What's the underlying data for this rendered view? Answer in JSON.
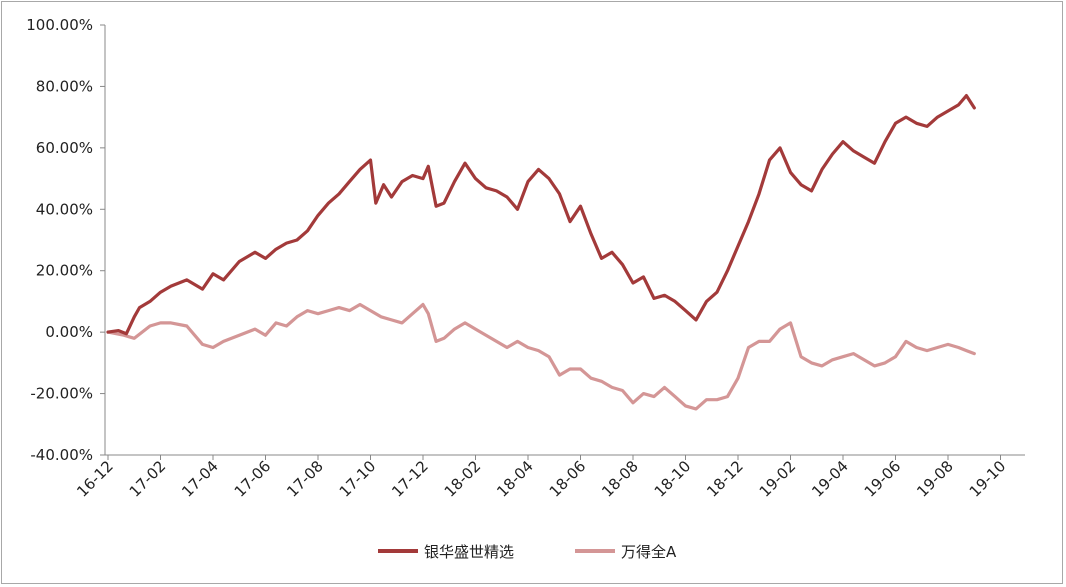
{
  "chart_data": {
    "type": "line",
    "y_ticks": [
      "100.00%",
      "80.00%",
      "60.00%",
      "40.00%",
      "20.00%",
      "0.00%",
      "-20.00%",
      "-40.00%"
    ],
    "ylim": [
      -40,
      100
    ],
    "x_ticks": [
      "16-12",
      "17-02",
      "17-04",
      "17-06",
      "17-08",
      "17-10",
      "17-12",
      "18-02",
      "18-04",
      "18-06",
      "18-08",
      "18-10",
      "18-12",
      "19-02",
      "19-04",
      "19-06",
      "19-08",
      "19-10"
    ],
    "series": [
      {
        "name": "银华盛世精选",
        "color": "#a33a3a",
        "points": [
          [
            0,
            0
          ],
          [
            0.2,
            0.5
          ],
          [
            0.35,
            -0.5
          ],
          [
            0.5,
            5
          ],
          [
            0.6,
            8
          ],
          [
            0.8,
            10
          ],
          [
            1.0,
            13
          ],
          [
            1.2,
            15
          ],
          [
            1.5,
            17
          ],
          [
            1.8,
            14
          ],
          [
            2.0,
            19
          ],
          [
            2.2,
            17
          ],
          [
            2.5,
            23
          ],
          [
            2.8,
            26
          ],
          [
            3.0,
            24
          ],
          [
            3.2,
            27
          ],
          [
            3.4,
            29
          ],
          [
            3.6,
            30
          ],
          [
            3.8,
            33
          ],
          [
            4.0,
            38
          ],
          [
            4.2,
            42
          ],
          [
            4.4,
            45
          ],
          [
            4.6,
            49
          ],
          [
            4.8,
            53
          ],
          [
            5.0,
            56
          ],
          [
            5.1,
            42
          ],
          [
            5.25,
            48
          ],
          [
            5.4,
            44
          ],
          [
            5.6,
            49
          ],
          [
            5.8,
            51
          ],
          [
            6.0,
            50
          ],
          [
            6.1,
            54
          ],
          [
            6.25,
            41
          ],
          [
            6.4,
            42
          ],
          [
            6.6,
            49
          ],
          [
            6.8,
            55
          ],
          [
            7.0,
            50
          ],
          [
            7.2,
            47
          ],
          [
            7.4,
            46
          ],
          [
            7.6,
            44
          ],
          [
            7.8,
            40
          ],
          [
            8.0,
            49
          ],
          [
            8.2,
            53
          ],
          [
            8.4,
            50
          ],
          [
            8.6,
            45
          ],
          [
            8.8,
            36
          ],
          [
            9.0,
            41
          ],
          [
            9.2,
            32
          ],
          [
            9.4,
            24
          ],
          [
            9.6,
            26
          ],
          [
            9.8,
            22
          ],
          [
            10.0,
            16
          ],
          [
            10.2,
            18
          ],
          [
            10.4,
            11
          ],
          [
            10.6,
            12
          ],
          [
            10.8,
            10
          ],
          [
            11.0,
            7
          ],
          [
            11.2,
            4
          ],
          [
            11.4,
            10
          ],
          [
            11.6,
            13
          ],
          [
            11.8,
            20
          ],
          [
            12.0,
            28
          ],
          [
            12.2,
            36
          ],
          [
            12.4,
            45
          ],
          [
            12.6,
            56
          ],
          [
            12.8,
            60
          ],
          [
            13.0,
            52
          ],
          [
            13.2,
            48
          ],
          [
            13.4,
            46
          ],
          [
            13.6,
            53
          ],
          [
            13.8,
            58
          ],
          [
            14.0,
            62
          ],
          [
            14.2,
            59
          ],
          [
            14.4,
            57
          ],
          [
            14.6,
            55
          ],
          [
            14.8,
            62
          ],
          [
            15.0,
            68
          ],
          [
            15.2,
            70
          ],
          [
            15.4,
            68
          ],
          [
            15.6,
            67
          ],
          [
            15.8,
            70
          ],
          [
            16.0,
            72
          ],
          [
            16.2,
            74
          ],
          [
            16.35,
            77
          ],
          [
            16.5,
            73
          ]
        ]
      },
      {
        "name": "万得全A",
        "color": "#d49696",
        "points": [
          [
            0,
            0
          ],
          [
            0.3,
            -1
          ],
          [
            0.5,
            -2
          ],
          [
            0.8,
            2
          ],
          [
            1.0,
            3
          ],
          [
            1.2,
            3
          ],
          [
            1.5,
            2
          ],
          [
            1.8,
            -4
          ],
          [
            2.0,
            -5
          ],
          [
            2.2,
            -3
          ],
          [
            2.5,
            -1
          ],
          [
            2.8,
            1
          ],
          [
            3.0,
            -1
          ],
          [
            3.2,
            3
          ],
          [
            3.4,
            2
          ],
          [
            3.6,
            5
          ],
          [
            3.8,
            7
          ],
          [
            4.0,
            6
          ],
          [
            4.2,
            7
          ],
          [
            4.4,
            8
          ],
          [
            4.6,
            7
          ],
          [
            4.8,
            9
          ],
          [
            5.0,
            7
          ],
          [
            5.2,
            5
          ],
          [
            5.4,
            4
          ],
          [
            5.6,
            3
          ],
          [
            5.8,
            6
          ],
          [
            6.0,
            9
          ],
          [
            6.1,
            6
          ],
          [
            6.25,
            -3
          ],
          [
            6.4,
            -2
          ],
          [
            6.6,
            1
          ],
          [
            6.8,
            3
          ],
          [
            7.0,
            1
          ],
          [
            7.2,
            -1
          ],
          [
            7.4,
            -3
          ],
          [
            7.6,
            -5
          ],
          [
            7.8,
            -3
          ],
          [
            8.0,
            -5
          ],
          [
            8.2,
            -6
          ],
          [
            8.4,
            -8
          ],
          [
            8.6,
            -14
          ],
          [
            8.8,
            -12
          ],
          [
            9.0,
            -12
          ],
          [
            9.2,
            -15
          ],
          [
            9.4,
            -16
          ],
          [
            9.6,
            -18
          ],
          [
            9.8,
            -19
          ],
          [
            10.0,
            -23
          ],
          [
            10.2,
            -20
          ],
          [
            10.4,
            -21
          ],
          [
            10.6,
            -18
          ],
          [
            10.8,
            -21
          ],
          [
            11.0,
            -24
          ],
          [
            11.2,
            -25
          ],
          [
            11.4,
            -22
          ],
          [
            11.6,
            -22
          ],
          [
            11.8,
            -21
          ],
          [
            12.0,
            -15
          ],
          [
            12.2,
            -5
          ],
          [
            12.4,
            -3
          ],
          [
            12.6,
            -3
          ],
          [
            12.8,
            1
          ],
          [
            13.0,
            3
          ],
          [
            13.2,
            -8
          ],
          [
            13.4,
            -10
          ],
          [
            13.6,
            -11
          ],
          [
            13.8,
            -9
          ],
          [
            14.0,
            -8
          ],
          [
            14.2,
            -7
          ],
          [
            14.4,
            -9
          ],
          [
            14.6,
            -11
          ],
          [
            14.8,
            -10
          ],
          [
            15.0,
            -8
          ],
          [
            15.2,
            -3
          ],
          [
            15.4,
            -5
          ],
          [
            15.6,
            -6
          ],
          [
            15.8,
            -5
          ],
          [
            16.0,
            -4
          ],
          [
            16.2,
            -5
          ],
          [
            16.35,
            -6
          ],
          [
            16.5,
            -7
          ]
        ]
      }
    ],
    "legend_position": "bottom"
  }
}
